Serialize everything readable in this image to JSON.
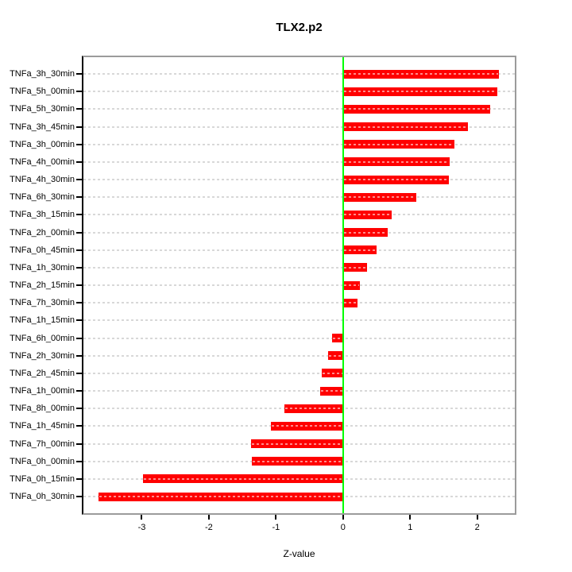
{
  "chart_data": {
    "type": "bar",
    "orientation": "horizontal",
    "title": "TLX2.p2",
    "xlabel": "Z-value",
    "ylabel": "",
    "categories": [
      "TNFa_3h_30min",
      "TNFa_5h_00min",
      "TNFa_5h_30min",
      "TNFa_3h_45min",
      "TNFa_3h_00min",
      "TNFa_4h_00min",
      "TNFa_4h_30min",
      "TNFa_6h_30min",
      "TNFa_3h_15min",
      "TNFa_2h_00min",
      "TNFa_0h_45min",
      "TNFa_1h_30min",
      "TNFa_2h_15min",
      "TNFa_7h_30min",
      "TNFa_1h_15min",
      "TNFa_6h_00min",
      "TNFa_2h_30min",
      "TNFa_2h_45min",
      "TNFa_1h_00min",
      "TNFa_8h_00min",
      "TNFa_1h_45min",
      "TNFa_7h_00min",
      "TNFa_0h_00min",
      "TNFa_0h_15min",
      "TNFa_0h_30min"
    ],
    "values": [
      2.32,
      2.3,
      2.19,
      1.86,
      1.66,
      1.59,
      1.58,
      1.09,
      0.73,
      0.67,
      0.5,
      0.36,
      0.25,
      0.21,
      -0.01,
      -0.16,
      -0.22,
      -0.32,
      -0.34,
      -0.87,
      -1.08,
      -1.37,
      -1.36,
      -2.98,
      -3.64
    ],
    "x_ticks": [
      -3,
      -2,
      -1,
      0,
      1,
      2
    ],
    "xlim": [
      -3.87,
      2.56
    ],
    "grid": true,
    "grid_style": "dashed-horizontal",
    "zero_line": true,
    "legend": "none",
    "colors": {
      "bar": "#ff0000",
      "zero_line": "#00ff00",
      "gridline": "#d8d8d8",
      "box": "#9b9b9b",
      "axis": "#000000"
    }
  }
}
